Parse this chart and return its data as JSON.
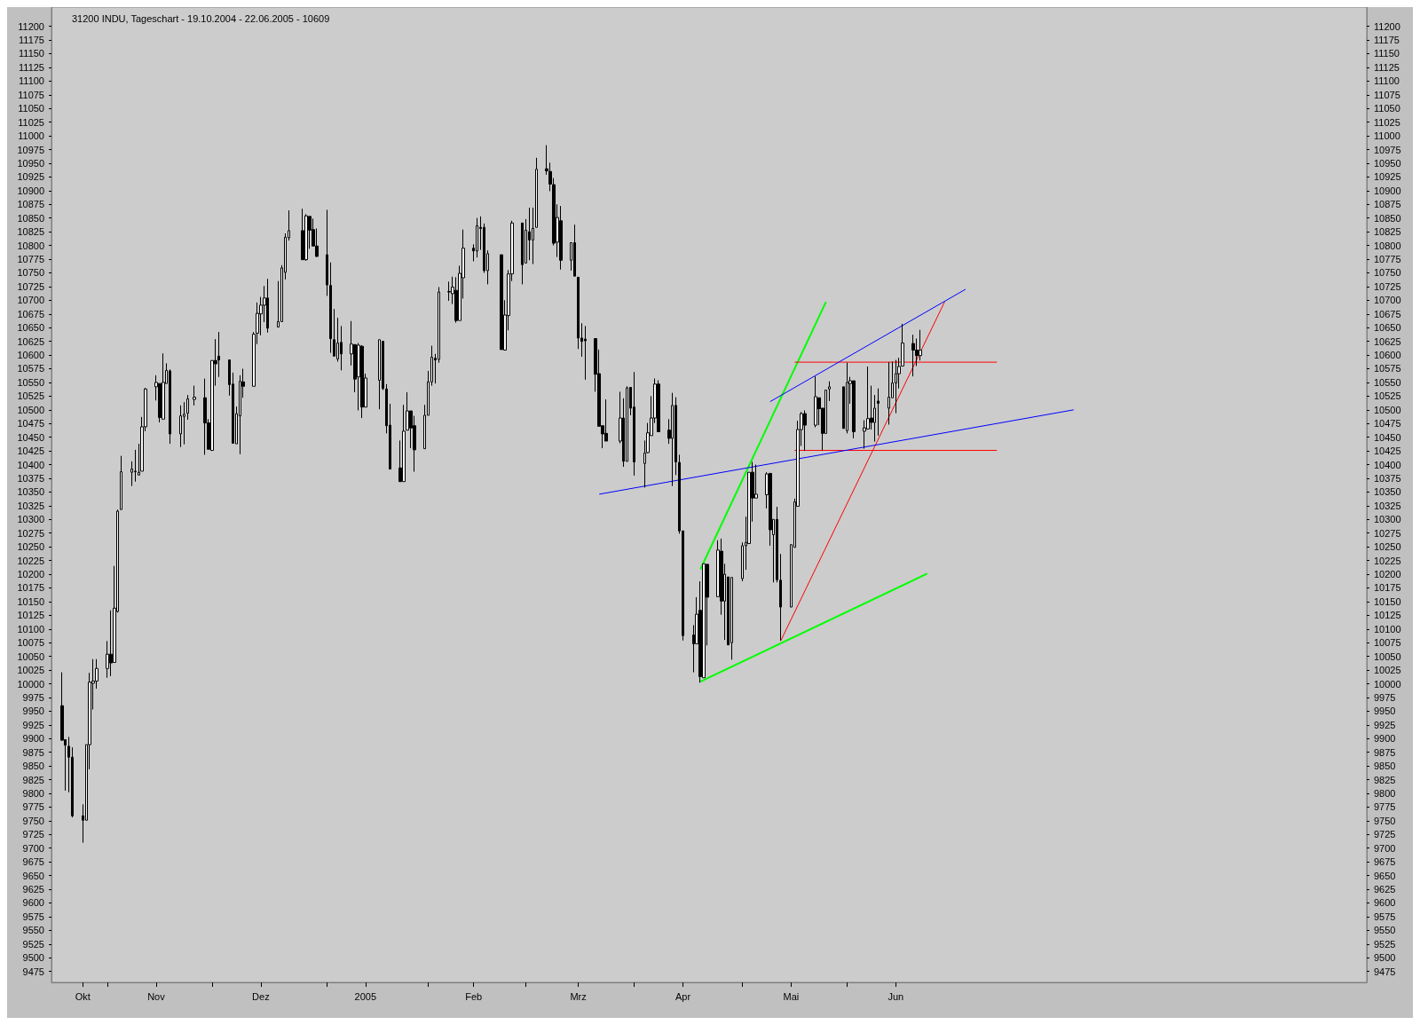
{
  "chart_data": {
    "type": "candlestick",
    "title": "31200 INDU, Tageschart - 19.10.2004 - 22.06.2005 - 10609",
    "x": [
      "2004-10-19",
      "2004-10-20",
      "2004-10-21",
      "2004-10-22",
      "2004-10-25",
      "2004-10-26",
      "2004-10-27",
      "2004-10-28",
      "2004-10-29",
      "2004-11-01",
      "2004-11-02",
      "2004-11-03",
      "2004-11-04",
      "2004-11-05",
      "2004-11-08",
      "2004-11-09",
      "2004-11-10",
      "2004-11-11",
      "2004-11-12",
      "2004-11-15",
      "2004-11-16",
      "2004-11-17",
      "2004-11-18",
      "2004-11-19",
      "2004-11-22",
      "2004-11-23",
      "2004-11-24",
      "2004-11-26",
      "2004-11-29",
      "2004-11-30",
      "2004-12-01",
      "2004-12-02",
      "2004-12-03",
      "2004-12-06",
      "2004-12-07",
      "2004-12-08",
      "2004-12-09",
      "2004-12-10",
      "2004-12-13",
      "2004-12-14",
      "2004-12-15",
      "2004-12-16",
      "2004-12-17",
      "2004-12-20",
      "2004-12-21",
      "2004-12-22",
      "2004-12-23",
      "2004-12-27",
      "2004-12-28",
      "2004-12-29",
      "2004-12-30",
      "2004-12-31",
      "2005-01-03",
      "2005-01-04",
      "2005-01-05",
      "2005-01-06",
      "2005-01-07",
      "2005-01-10",
      "2005-01-11",
      "2005-01-12",
      "2005-01-13",
      "2005-01-14",
      "2005-01-18",
      "2005-01-19",
      "2005-01-20",
      "2005-01-21",
      "2005-01-24",
      "2005-01-25",
      "2005-01-26",
      "2005-01-27",
      "2005-01-28",
      "2005-01-31",
      "2005-02-01",
      "2005-02-02",
      "2005-02-03",
      "2005-02-04",
      "2005-02-07",
      "2005-02-08",
      "2005-02-09",
      "2005-02-10",
      "2005-02-11",
      "2005-02-14",
      "2005-02-15",
      "2005-02-16",
      "2005-02-17",
      "2005-02-18",
      "2005-02-22",
      "2005-02-23",
      "2005-02-24",
      "2005-02-25",
      "2005-02-28",
      "2005-03-01",
      "2005-03-02",
      "2005-03-03",
      "2005-03-04",
      "2005-03-07",
      "2005-03-08",
      "2005-03-09",
      "2005-03-10",
      "2005-03-11",
      "2005-03-14",
      "2005-03-15",
      "2005-03-16",
      "2005-03-17",
      "2005-03-18",
      "2005-03-21",
      "2005-03-22",
      "2005-03-23",
      "2005-03-24",
      "2005-03-28",
      "2005-03-29",
      "2005-03-30",
      "2005-03-31",
      "2005-04-01",
      "2005-04-04",
      "2005-04-05",
      "2005-04-06",
      "2005-04-07",
      "2005-04-08",
      "2005-04-11",
      "2005-04-12",
      "2005-04-13",
      "2005-04-14",
      "2005-04-15",
      "2005-04-18",
      "2005-04-19",
      "2005-04-20",
      "2005-04-21",
      "2005-04-22",
      "2005-04-25",
      "2005-04-26",
      "2005-04-27",
      "2005-04-28",
      "2005-04-29",
      "2005-05-02",
      "2005-05-03",
      "2005-05-04",
      "2005-05-05",
      "2005-05-06",
      "2005-05-09",
      "2005-05-10",
      "2005-05-11",
      "2005-05-12",
      "2005-05-13",
      "2005-05-16",
      "2005-05-17",
      "2005-05-18",
      "2005-05-19",
      "2005-05-20",
      "2005-05-23",
      "2005-05-24",
      "2005-05-25",
      "2005-05-26",
      "2005-05-27",
      "2005-05-31",
      "2005-06-01",
      "2005-06-02",
      "2005-06-03",
      "2005-06-06",
      "2005-06-07",
      "2005-06-08",
      "2005-06-09",
      "2005-06-10",
      "2005-06-13",
      "2005-06-14",
      "2005-06-15",
      "2005-06-16",
      "2005-06-17",
      "2005-06-20",
      "2005-06-21",
      "2005-06-22"
    ],
    "ohlc": [
      [
        9960,
        10021,
        9896,
        9897
      ],
      [
        9898,
        9898,
        9805,
        9888
      ],
      [
        9886,
        9903,
        9802,
        9866
      ],
      [
        9866,
        9884,
        9756,
        9759
      ],
      [
        9759,
        9780,
        9710,
        9751
      ],
      [
        9751,
        9889,
        9751,
        9889
      ],
      [
        9889,
        10020,
        9844,
        10003
      ],
      [
        10001,
        10045,
        9953,
        10005
      ],
      [
        10005,
        10045,
        9991,
        10028
      ],
      [
        10028,
        10078,
        10011,
        10054
      ],
      [
        10054,
        10134,
        10014,
        10038
      ],
      [
        10039,
        10215,
        10039,
        10138
      ],
      [
        10132,
        10318,
        10130,
        10315
      ],
      [
        10318,
        10416,
        10318,
        10387
      ],
      [
        10386,
        10406,
        10361,
        10392
      ],
      [
        10387,
        10427,
        10369,
        10388
      ],
      [
        10381,
        10438,
        10381,
        10386
      ],
      [
        10388,
        10487,
        10388,
        10469
      ],
      [
        10469,
        10540,
        10461,
        10538
      ],
      [
        10542,
        10563,
        10517,
        10550
      ],
      [
        10548,
        10548,
        10477,
        10486
      ],
      [
        10483,
        10603,
        10483,
        10550
      ],
      [
        10548,
        10585,
        10548,
        10572
      ],
      [
        10571,
        10574,
        10438,
        10456
      ],
      [
        10456,
        10508,
        10432,
        10489
      ],
      [
        10488,
        10514,
        10437,
        10492
      ],
      [
        10494,
        10527,
        10482,
        10520
      ],
      [
        10519,
        10544,
        10508,
        10523
      ],
      [
        10522,
        10557,
        10418,
        10476
      ],
      [
        10476,
        10483,
        10428,
        10428
      ],
      [
        10426,
        10590,
        10425,
        10590
      ],
      [
        10590,
        10629,
        10544,
        10584
      ],
      [
        10598,
        10642,
        10560,
        10591
      ],
      [
        10591,
        10591,
        10526,
        10546
      ],
      [
        10547,
        10568,
        10439,
        10439
      ],
      [
        10438,
        10506,
        10438,
        10493
      ],
      [
        10489,
        10563,
        10419,
        10552
      ],
      [
        10551,
        10575,
        10522,
        10543
      ],
      [
        10543,
        10642,
        10543,
        10638
      ],
      [
        10640,
        10696,
        10620,
        10676
      ],
      [
        10675,
        10706,
        10636,
        10691
      ],
      [
        10691,
        10726,
        10660,
        10704
      ],
      [
        10704,
        10739,
        10641,
        10649
      ],
      [
        10651,
        10735,
        10651,
        10661
      ],
      [
        10661,
        10764,
        10661,
        10759
      ],
      [
        10751,
        10822,
        10738,
        10815
      ],
      [
        10814,
        10864,
        10809,
        10827
      ],
      [
        10827,
        10867,
        10774,
        10774
      ],
      [
        10774,
        10857,
        10772,
        10854
      ],
      [
        10853,
        10853,
        10794,
        10828
      ],
      [
        10829,
        10849,
        10799,
        10799
      ],
      [
        10799,
        10831,
        10779,
        10780
      ],
      [
        10783,
        10865,
        10708,
        10728
      ],
      [
        10727,
        10769,
        10604,
        10630
      ],
      [
        10628,
        10684,
        10598,
        10598
      ],
      [
        10593,
        10668,
        10588,
        10622
      ],
      [
        10623,
        10653,
        10572,
        10602
      ],
      [
        10602,
        10662,
        10581,
        10620
      ],
      [
        10619,
        10619,
        10532,
        10556
      ],
      [
        10560,
        10622,
        10499,
        10618
      ],
      [
        10616,
        10618,
        10485,
        10505
      ],
      [
        10505,
        10566,
        10505,
        10558
      ],
      [
        10554,
        10628,
        10501,
        10628
      ],
      [
        10625,
        10625,
        10536,
        10539
      ],
      [
        10538,
        10547,
        10457,
        10471
      ],
      [
        10472,
        10511,
        10391,
        10392
      ],
      [
        10394,
        10444,
        10369,
        10369
      ],
      [
        10369,
        10509,
        10369,
        10461
      ],
      [
        10463,
        10532,
        10463,
        10498
      ],
      [
        10498,
        10498,
        10430,
        10467
      ],
      [
        10471,
        10489,
        10387,
        10427
      ],
      [
        10429,
        10509,
        10429,
        10490
      ],
      [
        10490,
        10571,
        10490,
        10551
      ],
      [
        10551,
        10617,
        10544,
        10596
      ],
      [
        10594,
        10602,
        10548,
        10591
      ],
      [
        10592,
        10724,
        10586,
        10715
      ],
      [
        10715,
        10734,
        10699,
        10716
      ],
      [
        10712,
        10743,
        10693,
        10724
      ],
      [
        10718,
        10742,
        10659,
        10663
      ],
      [
        10663,
        10763,
        10663,
        10749
      ],
      [
        10741,
        10829,
        10703,
        10795
      ],
      [
        10795,
        10802,
        10771,
        10790
      ],
      [
        10790,
        10850,
        10778,
        10836
      ],
      [
        10833,
        10853,
        10792,
        10831
      ],
      [
        10833,
        10840,
        10750,
        10754
      ],
      [
        10754,
        10791,
        10729,
        10785
      ],
      [
        10783,
        10783,
        10610,
        10610
      ],
      [
        10609,
        10700,
        10609,
        10673
      ],
      [
        10672,
        10755,
        10645,
        10748
      ],
      [
        10748,
        10845,
        10735,
        10841
      ],
      [
        10841,
        10841,
        10729,
        10765
      ],
      [
        10768,
        10848,
        10768,
        10828
      ],
      [
        10825,
        10869,
        10773,
        10810
      ],
      [
        10810,
        10869,
        10766,
        10831
      ],
      [
        10833,
        10960,
        10833,
        10939
      ],
      [
        10940,
        10983,
        10929,
        10936
      ],
      [
        10935,
        10951,
        10899,
        10912
      ],
      [
        10911,
        10923,
        10800,
        10804
      ],
      [
        10806,
        10875,
        10779,
        10851
      ],
      [
        10845,
        10872,
        10756,
        10773
      ],
      [
        10773,
        10805,
        10754,
        10805
      ],
      [
        10805,
        10838,
        10744,
        10744
      ],
      [
        10742,
        10742,
        10611,
        10631
      ],
      [
        10631,
        10658,
        10597,
        10625
      ],
      [
        10629,
        10653,
        10555,
        10626
      ],
      [
        10630,
        10630,
        10533,
        10565
      ],
      [
        10566,
        10610,
        10470,
        10470
      ],
      [
        10471,
        10471,
        10430,
        10456
      ],
      [
        10457,
        10519,
        10443,
        10443
      ],
      [
        10443,
        10533,
        10439,
        10485
      ],
      [
        10485,
        10521,
        10396,
        10406
      ],
      [
        10406,
        10543,
        10406,
        10540
      ],
      [
        10541,
        10541,
        10490,
        10503
      ],
      [
        10505,
        10569,
        10380,
        10405
      ],
      [
        10402,
        10444,
        10358,
        10421
      ],
      [
        10422,
        10476,
        10421,
        10458
      ],
      [
        10453,
        10525,
        10453,
        10485
      ],
      [
        10485,
        10557,
        10476,
        10547
      ],
      [
        10547,
        10554,
        10460,
        10460
      ],
      [
        10463,
        10483,
        10438,
        10448
      ],
      [
        10448,
        10531,
        10361,
        10508
      ],
      [
        10508,
        10523,
        10381,
        10405
      ],
      [
        10404,
        10418,
        10274,
        10279
      ],
      [
        10279,
        10279,
        10079,
        10088
      ],
      [
        10089,
        10107,
        10021,
        10073
      ],
      [
        10073,
        10158,
        10073,
        10127
      ],
      [
        10134,
        10187,
        10002,
        10013
      ],
      [
        10011,
        10219,
        10011,
        10219
      ],
      [
        10218,
        10219,
        10070,
        10158
      ],
      [
        10159,
        10262,
        10159,
        10244
      ],
      [
        10242,
        10265,
        10126,
        10151
      ],
      [
        10151,
        10219,
        10080,
        10200
      ],
      [
        10195,
        10195,
        10071,
        10071
      ],
      [
        10075,
        10194,
        10044,
        10194
      ],
      [
        10192,
        10258,
        10187,
        10252
      ],
      [
        10252,
        10305,
        10208,
        10258
      ],
      [
        10256,
        10386,
        10256,
        10386
      ],
      [
        10386,
        10405,
        10296,
        10339
      ],
      [
        10339,
        10400,
        10339,
        10346
      ],
      [
        10345,
        10386,
        10320,
        10383
      ],
      [
        10384,
        10384,
        10252,
        10281
      ],
      [
        10272,
        10300,
        10185,
        10300
      ],
      [
        10300,
        10323,
        10185,
        10190
      ],
      [
        10189,
        10237,
        10079,
        10140
      ],
      [
        10140,
        10254,
        10140,
        10254
      ],
      [
        10249,
        10338,
        10249,
        10332
      ],
      [
        10324,
        10480,
        10324,
        10464
      ],
      [
        10464,
        10496,
        10434,
        10493
      ],
      [
        10493,
        10499,
        10425,
        10472
      ],
      [
        10472,
        10561,
        10468,
        10524
      ],
      [
        10522,
        10522,
        10472,
        10502
      ],
      [
        10503,
        10503,
        10426,
        10457
      ],
      [
        10457,
        10536,
        10457,
        10536
      ],
      [
        10538,
        10552,
        10516,
        10542
      ],
      [
        10542,
        10542,
        10466,
        10466
      ],
      [
        10462,
        10586,
        10457,
        10550
      ],
      [
        10548,
        10560,
        10511,
        10553
      ],
      [
        10553,
        10553,
        10448,
        10460
      ],
      [
        10461,
        10481,
        10429,
        10467
      ],
      [
        10465,
        10579,
        10465,
        10484
      ],
      [
        10485,
        10544,
        10464,
        10477
      ],
      [
        10477,
        10527,
        10442,
        10503
      ],
      [
        10516,
        10539,
        10453,
        10512
      ],
      [
        10503,
        10587,
        10473,
        10523
      ],
      [
        10522,
        10588,
        10522,
        10549
      ],
      [
        10549,
        10591,
        10494,
        10566
      ],
      [
        10566,
        10595,
        10539,
        10579
      ],
      [
        10580,
        10657,
        10580,
        10622
      ],
      [
        10621,
        10637,
        10561,
        10609
      ],
      [
        10609,
        10630,
        10580,
        10599
      ],
      [
        10599,
        10646,
        10590,
        10609
      ]
    ],
    "series": [
      {
        "type": "line",
        "color": "#00ff00",
        "x": [
          "2005-04-20",
          "2005-05-26"
        ],
        "values": [
          10209,
          10697
        ]
      },
      {
        "type": "line",
        "color": "#00ff00",
        "x": [
          "2005-04-20",
          "2005-06-24"
        ],
        "values": [
          10004,
          10201
        ]
      },
      {
        "type": "line",
        "color": "#ff0000",
        "x": [
          "2005-05-13",
          "2005-06-29"
        ],
        "values": [
          10078,
          10697
        ]
      },
      {
        "type": "line",
        "color": "#ff0000",
        "x": [
          "2005-05-17",
          "2005-07-14"
        ],
        "values": [
          10587,
          10587
        ]
      },
      {
        "type": "line",
        "color": "#ff0000",
        "x": [
          "2005-05-17",
          "2005-07-14"
        ],
        "values": [
          10426,
          10426
        ]
      },
      {
        "type": "line",
        "color": "#0000ff",
        "x": [
          "2005-03-22",
          "2005-08-05"
        ],
        "values": [
          10346,
          10500
        ]
      },
      {
        "type": "line",
        "color": "#0000ff",
        "x": [
          "2005-05-10",
          "2005-07-05"
        ],
        "values": [
          10515,
          10720
        ]
      }
    ],
    "xlim": [
      "2004-10-16",
      "2005-10-28"
    ],
    "xticks": [
      {
        "value": "2004-10-25",
        "label": "Okt"
      },
      {
        "value": "2004-11-01",
        "label": null
      },
      {
        "value": "2004-11-15",
        "label": "Nov"
      },
      {
        "value": "2004-12-01",
        "label": null
      },
      {
        "value": "2004-12-15",
        "label": "Dez"
      },
      {
        "value": "2005-01-03",
        "label": null
      },
      {
        "value": "2005-01-14",
        "label": "2005"
      },
      {
        "value": "2005-02-01",
        "label": null
      },
      {
        "value": "2005-02-14",
        "label": "Feb"
      },
      {
        "value": "2005-03-01",
        "label": null
      },
      {
        "value": "2005-03-16",
        "label": "Mrz"
      },
      {
        "value": "2005-04-01",
        "label": null
      },
      {
        "value": "2005-04-15",
        "label": "Apr"
      },
      {
        "value": "2005-05-02",
        "label": null
      },
      {
        "value": "2005-05-16",
        "label": "Mai"
      },
      {
        "value": "2005-06-01",
        "label": null
      },
      {
        "value": "2005-06-15",
        "label": "Jun"
      }
    ],
    "ylim": [
      9455,
      11235
    ],
    "yticks": [
      9475,
      9500,
      9525,
      9550,
      9575,
      9600,
      9625,
      9650,
      9675,
      9700,
      9725,
      9750,
      9775,
      9800,
      9825,
      9850,
      9875,
      9900,
      9925,
      9950,
      9975,
      10000,
      10025,
      10050,
      10075,
      10100,
      10125,
      10150,
      10175,
      10200,
      10225,
      10250,
      10275,
      10300,
      10325,
      10350,
      10375,
      10400,
      10425,
      10450,
      10475,
      10500,
      10525,
      10550,
      10575,
      10600,
      10625,
      10650,
      10675,
      10700,
      10725,
      10750,
      10775,
      10800,
      10825,
      10850,
      10875,
      10900,
      10925,
      10950,
      10975,
      11000,
      11025,
      11050,
      11075,
      11100,
      11125,
      11150,
      11175,
      11200
    ],
    "y2lim": [
      9455,
      11235
    ],
    "y2ticks": [
      9475,
      9500,
      9525,
      9550,
      9575,
      9600,
      9625,
      9650,
      9675,
      9700,
      9725,
      9750,
      9775,
      9800,
      9825,
      9850,
      9875,
      9900,
      9925,
      9950,
      9975,
      10000,
      10025,
      10050,
      10075,
      10100,
      10125,
      10150,
      10175,
      10200,
      10225,
      10250,
      10275,
      10300,
      10325,
      10350,
      10375,
      10400,
      10425,
      10450,
      10475,
      10500,
      10525,
      10550,
      10575,
      10600,
      10625,
      10650,
      10675,
      10700,
      10725,
      10750,
      10775,
      10800,
      10825,
      10850,
      10875,
      10900,
      10925,
      10950,
      10975,
      11000,
      11025,
      11050,
      11075,
      11100,
      11125,
      11150,
      11175,
      11200
    ],
    "marker": "none"
  }
}
